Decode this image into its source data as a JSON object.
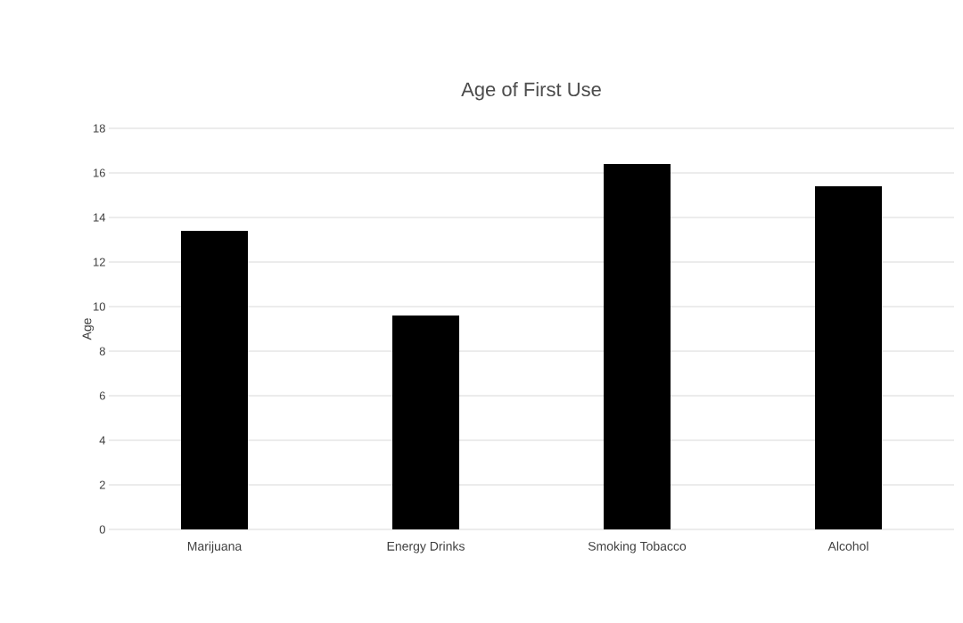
{
  "chart_data": {
    "type": "bar",
    "title": "Age of First Use",
    "ylabel": "Age",
    "categories": [
      "Marijuana",
      "Energy Drinks",
      "Smoking Tobacco",
      "Alcohol"
    ],
    "values": [
      13.4,
      9.6,
      16.4,
      15.4
    ],
    "color": "#000000",
    "ylim": [
      0,
      18
    ],
    "yticks": [
      0,
      2,
      4,
      6,
      8,
      10,
      12,
      14,
      16,
      18
    ],
    "grid": "y"
  }
}
